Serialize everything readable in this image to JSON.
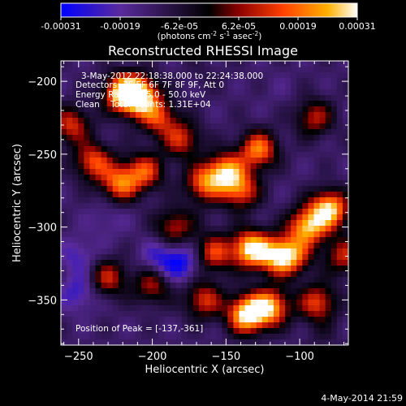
{
  "colorbar": {
    "tick_labels": [
      "-0.00031",
      "-0.00019",
      "-6.2e-05",
      "6.2e-05",
      "0.00019",
      "0.00031"
    ],
    "unit_label": "(photons cm",
    "unit_exp1": "-2",
    "unit_mid1": " s",
    "unit_exp2": "-1",
    "unit_mid2": " asec",
    "unit_exp3": "-2",
    "unit_end": ")",
    "colors": [
      "#0000ff",
      "#5a2a9c",
      "#000000",
      "#8b0000",
      "#ff4000",
      "#ffb000",
      "#ffffff"
    ]
  },
  "chart_data": {
    "type": "heatmap",
    "title": "Reconstructed RHESSI Image",
    "xlabel": "Heliocentric X (arcsec)",
    "ylabel": "Heliocentric Y (arcsec)",
    "xlim": [
      -262,
      -67
    ],
    "ylim": [
      -381,
      -186
    ],
    "x_ticks": [
      -250,
      -200,
      -150,
      -100
    ],
    "y_ticks": [
      -200,
      -250,
      -300,
      -350
    ],
    "value_range": [
      -0.00031,
      0.00031
    ],
    "peak_position": [
      -137,
      -361
    ],
    "sources": [
      {
        "x": -209,
        "y": -210,
        "value": 0.00031
      },
      {
        "x": -220,
        "y": -208,
        "value": 0.00026
      },
      {
        "x": -196,
        "y": -225,
        "value": 0.00012
      },
      {
        "x": -222,
        "y": -270,
        "value": 0.00018
      },
      {
        "x": -240,
        "y": -255,
        "value": 0.00015
      },
      {
        "x": -205,
        "y": -262,
        "value": 0.00014
      },
      {
        "x": -180,
        "y": -240,
        "value": 0.00011
      },
      {
        "x": -165,
        "y": -270,
        "value": 0.00016
      },
      {
        "x": -150,
        "y": -262,
        "value": 0.00022
      },
      {
        "x": -128,
        "y": -247,
        "value": 0.0002
      },
      {
        "x": -140,
        "y": -275,
        "value": 0.00015
      },
      {
        "x": -80,
        "y": -288,
        "value": 0.00029
      },
      {
        "x": -95,
        "y": -300,
        "value": 0.00024
      },
      {
        "x": -105,
        "y": -320,
        "value": 0.00012
      },
      {
        "x": -133,
        "y": -315,
        "value": 0.0003
      },
      {
        "x": -115,
        "y": -320,
        "value": 0.00018
      },
      {
        "x": -158,
        "y": -318,
        "value": 0.00013
      },
      {
        "x": -136,
        "y": -360,
        "value": 0.00031
      },
      {
        "x": -120,
        "y": -355,
        "value": 0.00024
      },
      {
        "x": -88,
        "y": -352,
        "value": 0.00014
      },
      {
        "x": -165,
        "y": -350,
        "value": 0.00012
      },
      {
        "x": -230,
        "y": -335,
        "value": 0.0001
      },
      {
        "x": -200,
        "y": -340,
        "value": 8e-05
      },
      {
        "x": -255,
        "y": -230,
        "value": 0.00012
      },
      {
        "x": -90,
        "y": -225,
        "value": 9e-05
      },
      {
        "x": -70,
        "y": -320,
        "value": 0.0001
      },
      {
        "x": -185,
        "y": -300,
        "value": 9e-05
      },
      {
        "x": -235,
        "y": -205,
        "value": -0.00012
      },
      {
        "x": -230,
        "y": -295,
        "value": -0.00018
      },
      {
        "x": -250,
        "y": -320,
        "value": -0.00022
      },
      {
        "x": -250,
        "y": -345,
        "value": -0.00024
      },
      {
        "x": -195,
        "y": -322,
        "value": -0.00024
      },
      {
        "x": -180,
        "y": -325,
        "value": -0.00028
      },
      {
        "x": -115,
        "y": -205,
        "value": -0.00014
      },
      {
        "x": -165,
        "y": -295,
        "value": -0.0001
      },
      {
        "x": -90,
        "y": -265,
        "value": -0.00012
      },
      {
        "x": -85,
        "y": -375,
        "value": -8e-05
      },
      {
        "x": -165,
        "y": -195,
        "value": -9e-05
      },
      {
        "x": -210,
        "y": -375,
        "value": -0.00012
      }
    ]
  },
  "info": {
    "time_range": "3-May-2012 22:18:38.000 to 22:24:38.000",
    "detectors": "Detectors: 3F 5F 6F 7F 8F 9F, Att 0",
    "energy": "Energy Range: 25.0 - 50.0 keV",
    "clean": "Clean    Total Counts: 1.31E+04",
    "peak": "Position of Peak = [-137,-361]"
  },
  "footer_date": "4-May-2014 21:59"
}
